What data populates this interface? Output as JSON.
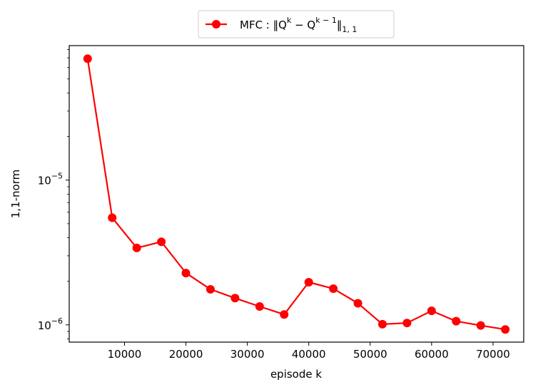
{
  "chart_data": {
    "type": "line",
    "xlabel": "episode k",
    "ylabel": "1,1-norm",
    "yscale": "log",
    "xlim": [
      1000,
      75000
    ],
    "ylim": [
      7.6e-07,
      8.5e-05
    ],
    "x_ticks": [
      {
        "value": 10000,
        "label": "10000"
      },
      {
        "value": 20000,
        "label": "20000"
      },
      {
        "value": 30000,
        "label": "30000"
      },
      {
        "value": 40000,
        "label": "40000"
      },
      {
        "value": 50000,
        "label": "50000"
      },
      {
        "value": 60000,
        "label": "60000"
      },
      {
        "value": 70000,
        "label": "70000"
      }
    ],
    "y_ticks": [
      {
        "value": 1e-06,
        "base": "10",
        "exp": "−6"
      },
      {
        "value": 1e-05,
        "base": "10",
        "exp": "−5"
      }
    ],
    "legend": {
      "position": "top-center",
      "prefix": "MFC : ‖Q",
      "sup1": "k",
      "mid": " − Q",
      "sup2": "k − 1",
      "suffix": "‖",
      "sub": "1, 1"
    },
    "grid": false,
    "color": "#ff0000",
    "series": [
      {
        "x": [
          4000,
          8000,
          12000,
          16000,
          20000,
          24000,
          28000,
          32000,
          36000,
          40000,
          44000,
          48000,
          52000,
          56000,
          60000,
          64000,
          68000,
          72000
        ],
        "y": [
          6.9e-05,
          5.5e-06,
          3.4e-06,
          3.75e-06,
          2.28e-06,
          1.76e-06,
          1.53e-06,
          1.34e-06,
          1.18e-06,
          1.97e-06,
          1.78e-06,
          1.41e-06,
          1.01e-06,
          1.03e-06,
          1.25e-06,
          1.06e-06,
          9.9e-07,
          9.3e-07
        ]
      }
    ]
  }
}
